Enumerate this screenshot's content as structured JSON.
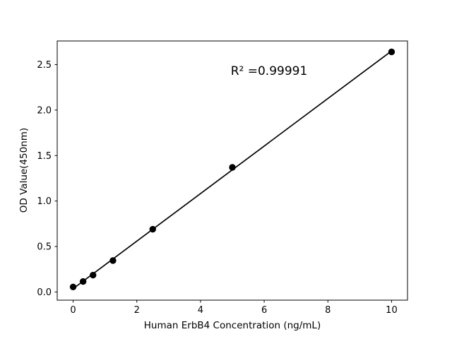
{
  "chart_data": {
    "type": "scatter",
    "title": "",
    "xlabel": "Human ErbB4 Concentration (ng/mL)",
    "ylabel": "OD Value(450nm)",
    "annotation": "R² =0.99991",
    "r_squared": 0.99991,
    "x": [
      0,
      0.313,
      0.625,
      1.25,
      2.5,
      5,
      10
    ],
    "y": [
      0.055,
      0.115,
      0.185,
      0.345,
      0.69,
      1.37,
      2.64
    ],
    "fit_line": true,
    "xlim": [
      -0.5,
      10.5
    ],
    "ylim": [
      -0.09,
      2.76
    ],
    "xtick_values": [
      0,
      2,
      4,
      6,
      8,
      10
    ],
    "xtick_labels": [
      "0",
      "2",
      "4",
      "6",
      "8",
      "10"
    ],
    "ytick_values": [
      0.0,
      0.5,
      1.0,
      1.5,
      2.0,
      2.5
    ],
    "ytick_labels": [
      "0.0",
      "0.5",
      "1.0",
      "1.5",
      "2.0",
      "2.5"
    ],
    "grid": false,
    "marker_color": "#000000",
    "line_color": "#000000",
    "axis_color": "#000000",
    "background": "#ffffff"
  }
}
